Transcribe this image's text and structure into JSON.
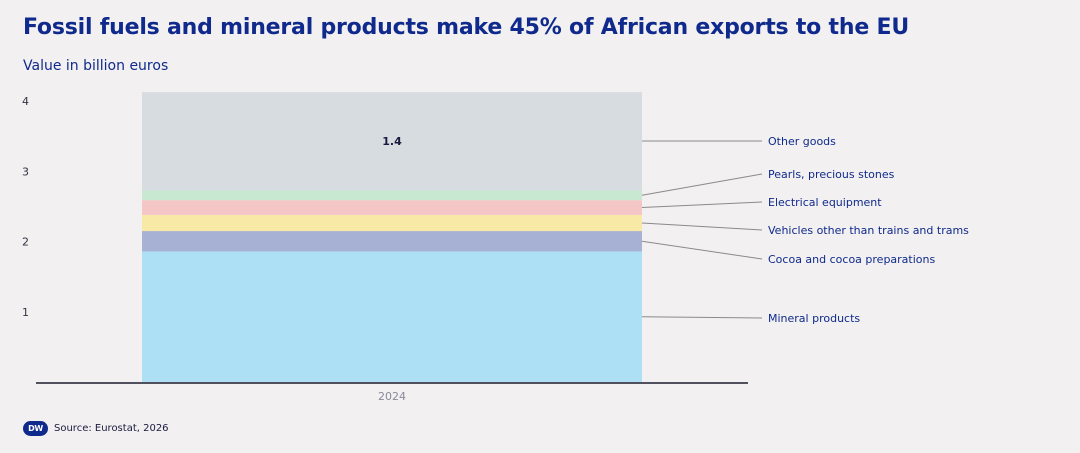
{
  "title": "Fossil fuels and mineral products make 45% of African exports to the EU",
  "subtitle": "Value in billion euros",
  "source": "Source: Eurostat, 2026",
  "logo_text": "DW",
  "chart_data": {
    "type": "bar",
    "stacked": true,
    "categories": [
      "2024"
    ],
    "ylim": [
      0,
      4.1
    ],
    "yticks": [
      1,
      2,
      3,
      4
    ],
    "grid": false,
    "legend": "right, with leader lines",
    "series": [
      {
        "name": "Mineral products",
        "values": [
          1.86
        ],
        "color": "#addff5"
      },
      {
        "name": "Cocoa and cocoa preparations",
        "values": [
          0.29
        ],
        "color": "#a7b1d4"
      },
      {
        "name": "Vehicles other than trains and trams",
        "values": [
          0.23
        ],
        "color": "#f8e9a6"
      },
      {
        "name": "Electrical equipment",
        "values": [
          0.21
        ],
        "color": "#f4c6c6"
      },
      {
        "name": "Pearls, precious stones",
        "values": [
          0.14
        ],
        "color": "#c9e8d2"
      },
      {
        "name": "Other goods",
        "values": [
          1.4
        ],
        "color": "#d7dce0"
      }
    ],
    "data_labels": [
      {
        "series": "Other goods",
        "text": "1.4"
      }
    ]
  }
}
